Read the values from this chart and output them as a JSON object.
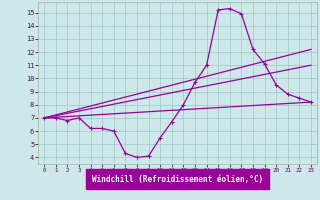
{
  "xlabel": "Windchill (Refroidissement éolien,°C)",
  "bg_color": "#cce8e8",
  "grid_color": "#aacccc",
  "line_color": "#990099",
  "xlim": [
    -0.5,
    23.5
  ],
  "ylim": [
    3.5,
    15.8
  ],
  "xticks": [
    0,
    1,
    2,
    3,
    4,
    5,
    6,
    7,
    8,
    9,
    10,
    11,
    12,
    13,
    14,
    15,
    16,
    17,
    18,
    19,
    20,
    21,
    22,
    23
  ],
  "yticks": [
    4,
    5,
    6,
    7,
    8,
    9,
    10,
    11,
    12,
    13,
    14,
    15
  ],
  "series1_x": [
    0,
    1,
    2,
    3,
    4,
    5,
    6,
    7,
    8,
    9,
    10,
    11,
    12,
    13,
    14,
    15,
    16,
    17,
    18,
    19,
    20,
    21,
    22,
    23
  ],
  "series1_y": [
    7.0,
    7.0,
    6.8,
    7.0,
    6.2,
    6.2,
    6.0,
    4.3,
    4.0,
    4.1,
    5.5,
    6.7,
    8.0,
    9.7,
    11.0,
    15.2,
    15.3,
    14.9,
    12.2,
    11.1,
    9.5,
    8.8,
    8.5,
    8.2
  ],
  "series2_x": [
    0,
    23
  ],
  "series2_y": [
    7.0,
    8.2
  ],
  "series3_x": [
    0,
    23
  ],
  "series3_y": [
    7.0,
    11.0
  ],
  "series4_x": [
    0,
    23
  ],
  "series4_y": [
    7.0,
    12.2
  ]
}
